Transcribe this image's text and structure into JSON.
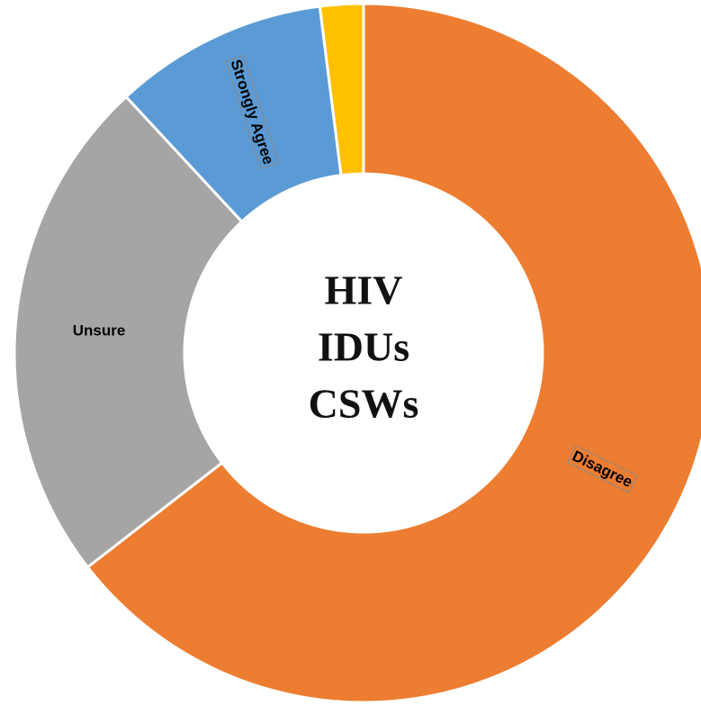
{
  "chart_data": {
    "type": "donut",
    "categories": [
      "Disagree",
      "Unsure",
      "Strongly Agree",
      null
    ],
    "values": [
      64.5,
      23.6,
      9.9,
      2.0
    ],
    "colors": [
      "#ed7d31",
      "#a5a5a5",
      "#5b9bd5",
      "#ffc000"
    ],
    "center_text": [
      "HIV",
      "IDUs",
      "CSWs"
    ]
  }
}
